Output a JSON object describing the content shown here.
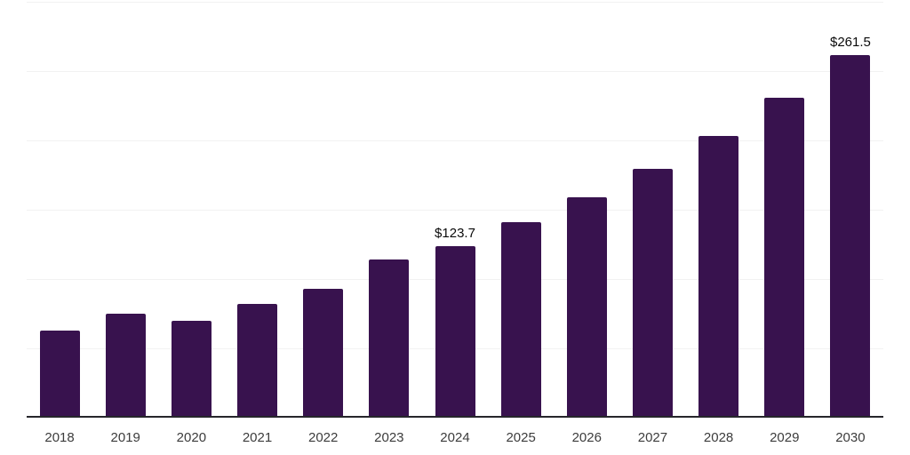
{
  "chart_data": {
    "type": "bar",
    "title": "",
    "xlabel": "",
    "ylabel": "",
    "categories": [
      "2018",
      "2019",
      "2020",
      "2021",
      "2022",
      "2023",
      "2024",
      "2025",
      "2026",
      "2027",
      "2028",
      "2029",
      "2030"
    ],
    "values": [
      62.7,
      75.1,
      70.0,
      82.1,
      92.7,
      114.1,
      123.7,
      140.9,
      158.8,
      179.6,
      202.9,
      230.7,
      261.5
    ],
    "annotations": [
      {
        "category": "2024",
        "text": "$123.7"
      },
      {
        "category": "2030",
        "text": "$261.5"
      }
    ],
    "ylim": [
      0,
      300
    ],
    "gridline_step": 50,
    "grid_on": true,
    "legend": "none",
    "y_tick_labels_visible": false
  },
  "style": {
    "bar_color": "#38124E",
    "axis_line_color": "#26262b",
    "gridline_color": "#f2f2f2",
    "tick_label_color": "#3c3c3c",
    "data_label_color": "#0a0a0a",
    "background_color": "#ffffff"
  }
}
